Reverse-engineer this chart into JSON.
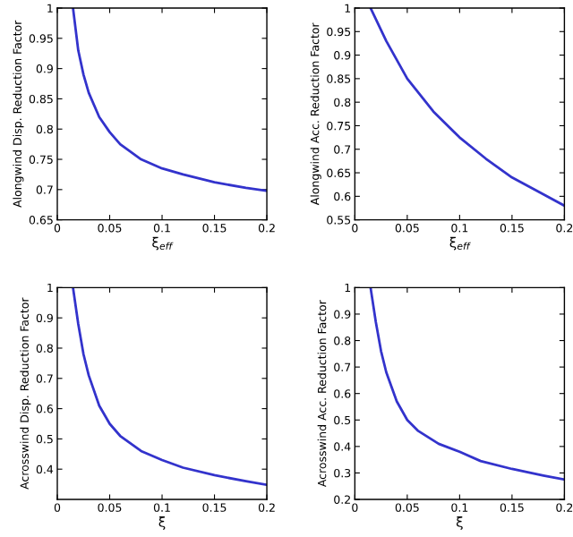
{
  "chart_data": [
    {
      "type": "line",
      "xlabel": "ξ$_{eff}$",
      "ylabel": "Alongwind Disp. Reduction Factor",
      "xlim": [
        0,
        0.2
      ],
      "ylim": [
        0.65,
        1
      ],
      "xticks": [
        0,
        0.05,
        0.1,
        0.15,
        0.2
      ],
      "yticks": [
        0.65,
        0.7,
        0.75,
        0.8,
        0.85,
        0.9,
        0.95,
        1
      ],
      "grid": false,
      "legend": false,
      "series": [
        {
          "color": "#3333cc",
          "x": [
            0.015,
            0.02,
            0.025,
            0.03,
            0.04,
            0.05,
            0.06,
            0.08,
            0.1,
            0.12,
            0.15,
            0.18,
            0.2
          ],
          "values": [
            1,
            0.93,
            0.89,
            0.86,
            0.82,
            0.795,
            0.775,
            0.75,
            0.735,
            0.725,
            0.712,
            0.703,
            0.698
          ]
        }
      ]
    },
    {
      "type": "line",
      "xlabel": "ξ$_{eff}$",
      "ylabel": "Alongwind Acc. Reduction Factor",
      "xlim": [
        0,
        0.2
      ],
      "ylim": [
        0.55,
        1
      ],
      "xticks": [
        0,
        0.05,
        0.1,
        0.15,
        0.2
      ],
      "yticks": [
        0.55,
        0.6,
        0.65,
        0.7,
        0.75,
        0.8,
        0.85,
        0.9,
        0.95,
        1
      ],
      "grid": false,
      "legend": false,
      "series": [
        {
          "color": "#3333cc",
          "x": [
            0.015,
            0.03,
            0.05,
            0.075,
            0.1,
            0.125,
            0.15,
            0.175,
            0.2
          ],
          "values": [
            1,
            0.93,
            0.85,
            0.78,
            0.725,
            0.68,
            0.64,
            0.61,
            0.58
          ]
        }
      ]
    },
    {
      "type": "line",
      "xlabel": "ξ",
      "ylabel": "Acrosswind Disp. Reduction Factor",
      "xlim": [
        0,
        0.2
      ],
      "ylim": [
        0.3,
        1
      ],
      "xticks": [
        0,
        0.05,
        0.1,
        0.15,
        0.2
      ],
      "yticks": [
        0.4,
        0.5,
        0.6,
        0.7,
        0.8,
        0.9,
        1
      ],
      "grid": false,
      "legend": false,
      "series": [
        {
          "color": "#3333cc",
          "x": [
            0.015,
            0.02,
            0.025,
            0.03,
            0.04,
            0.05,
            0.06,
            0.08,
            0.1,
            0.12,
            0.15,
            0.18,
            0.2
          ],
          "values": [
            1,
            0.88,
            0.78,
            0.71,
            0.61,
            0.55,
            0.51,
            0.46,
            0.43,
            0.405,
            0.38,
            0.36,
            0.348
          ]
        }
      ]
    },
    {
      "type": "line",
      "xlabel": "ξ",
      "ylabel": "Acrosswind Acc. Reduction Factor",
      "xlim": [
        0,
        0.2
      ],
      "ylim": [
        0.2,
        1
      ],
      "xticks": [
        0,
        0.05,
        0.1,
        0.15,
        0.2
      ],
      "yticks": [
        0.2,
        0.3,
        0.4,
        0.5,
        0.6,
        0.7,
        0.8,
        0.9,
        1
      ],
      "grid": false,
      "legend": false,
      "series": [
        {
          "color": "#3333cc",
          "x": [
            0.015,
            0.02,
            0.025,
            0.03,
            0.04,
            0.05,
            0.06,
            0.08,
            0.1,
            0.12,
            0.15,
            0.18,
            0.2
          ],
          "values": [
            1,
            0.87,
            0.76,
            0.68,
            0.57,
            0.5,
            0.46,
            0.41,
            0.38,
            0.345,
            0.315,
            0.29,
            0.275
          ]
        }
      ]
    }
  ]
}
